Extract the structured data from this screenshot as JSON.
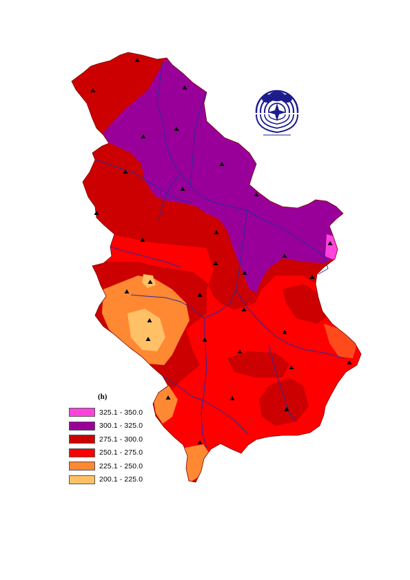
{
  "legend": {
    "title": "(h)",
    "classes": [
      {
        "label": "325.1 - 350.0",
        "color": "#ff44dd"
      },
      {
        "label": "300.1 - 325.0",
        "color": "#990099"
      },
      {
        "label": "275.1 - 300.0",
        "color": "#cc0000"
      },
      {
        "label": "250.1 - 275.0",
        "color": "#ff0000"
      },
      {
        "label": "225.1 - 250.0",
        "color": "#ff8833"
      },
      {
        "label": "200.1 - 225.0",
        "color": "#ffc066"
      }
    ]
  },
  "colors": {
    "river": "#2a2a9c",
    "station": "#000000",
    "logo": "#1c1c8c"
  },
  "icons": {
    "station": "triangle-icon",
    "logo": "institute-emblem-icon"
  }
}
